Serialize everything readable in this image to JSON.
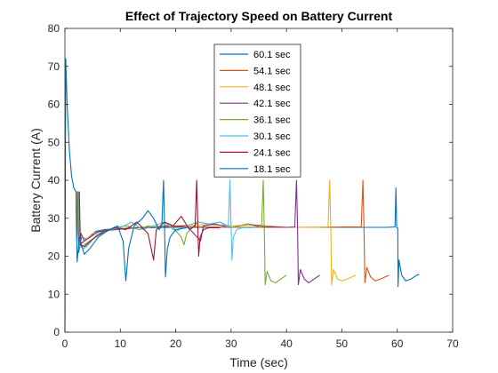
{
  "chart_data": {
    "type": "line",
    "title": "Effect of Trajectory Speed on Battery Current",
    "xlabel": "Time (sec)",
    "ylabel": "Battery Current (A)",
    "xlim": [
      0,
      70
    ],
    "ylim": [
      0,
      80
    ],
    "xticks": [
      0,
      10,
      20,
      30,
      40,
      50,
      60,
      70
    ],
    "yticks": [
      0,
      10,
      20,
      30,
      40,
      50,
      60,
      70,
      80
    ],
    "grid": false,
    "legend_position": "top-center",
    "series": [
      {
        "name": "60.1 sec",
        "color": "#0072BD",
        "points": [
          [
            0,
            0
          ],
          [
            0.15,
            72
          ],
          [
            0.4,
            60
          ],
          [
            0.8,
            48
          ],
          [
            1.2,
            41
          ],
          [
            1.6,
            38
          ],
          [
            2.0,
            37
          ],
          [
            2.1,
            25
          ],
          [
            2.3,
            37
          ],
          [
            2.5,
            21
          ],
          [
            2.9,
            26
          ],
          [
            3.5,
            24
          ],
          [
            4.5,
            25
          ],
          [
            5.5,
            26.5
          ],
          [
            7,
            27
          ],
          [
            9,
            27.2
          ],
          [
            12,
            27.5
          ],
          [
            15,
            27.5
          ],
          [
            20,
            27.6
          ],
          [
            30,
            27.6
          ],
          [
            40,
            27.6
          ],
          [
            50,
            27.6
          ],
          [
            58,
            27.6
          ],
          [
            59.6,
            27.7
          ],
          [
            59.75,
            38
          ],
          [
            59.9,
            27.5
          ],
          [
            60.1,
            27.4
          ],
          [
            60.15,
            12
          ],
          [
            60.3,
            19
          ],
          [
            60.8,
            15
          ],
          [
            61.5,
            13.5
          ],
          [
            62.5,
            14
          ],
          [
            63.5,
            15
          ],
          [
            64,
            15.2
          ]
        ]
      },
      {
        "name": "54.1 sec",
        "color": "#D95319",
        "points": [
          [
            2.0,
            37
          ],
          [
            2.2,
            26
          ],
          [
            2.4,
            34
          ],
          [
            2.6,
            22
          ],
          [
            3,
            25
          ],
          [
            4,
            24.5
          ],
          [
            6,
            26.5
          ],
          [
            9,
            27
          ],
          [
            13,
            27.5
          ],
          [
            20,
            27.8
          ],
          [
            30,
            27.6
          ],
          [
            40,
            27.6
          ],
          [
            50,
            27.7
          ],
          [
            53.5,
            27.7
          ],
          [
            53.8,
            40
          ],
          [
            54.0,
            27.5
          ],
          [
            54.15,
            13
          ],
          [
            54.5,
            17
          ],
          [
            55.2,
            14.5
          ],
          [
            56,
            13.5
          ],
          [
            57,
            14
          ],
          [
            58.5,
            15
          ]
        ]
      },
      {
        "name": "48.1 sec",
        "color": "#EDB120",
        "points": [
          [
            2.2,
            37
          ],
          [
            2.4,
            24
          ],
          [
            2.7,
            23
          ],
          [
            3.5,
            24
          ],
          [
            5,
            26
          ],
          [
            8,
            27
          ],
          [
            12,
            27.5
          ],
          [
            20,
            28
          ],
          [
            25,
            28.3
          ],
          [
            30,
            28
          ],
          [
            35,
            28.2
          ],
          [
            40,
            27.6
          ],
          [
            45,
            27.6
          ],
          [
            47.5,
            27.7
          ],
          [
            47.8,
            40
          ],
          [
            48.0,
            27.5
          ],
          [
            48.15,
            12.5
          ],
          [
            48.5,
            16.5
          ],
          [
            49.2,
            14
          ],
          [
            50,
            13.5
          ],
          [
            51,
            14
          ],
          [
            52.5,
            15
          ]
        ]
      },
      {
        "name": "42.1 sec",
        "color": "#7E2F8E",
        "points": [
          [
            2.3,
            37
          ],
          [
            2.5,
            23
          ],
          [
            3,
            23.5
          ],
          [
            4,
            24.5
          ],
          [
            6,
            26.5
          ],
          [
            9,
            27
          ],
          [
            13,
            27.5
          ],
          [
            18,
            27.8
          ],
          [
            22,
            28
          ],
          [
            24.5,
            24
          ],
          [
            25,
            28
          ],
          [
            27,
            28.5
          ],
          [
            30,
            27.5
          ],
          [
            33,
            28.5
          ],
          [
            36,
            27.8
          ],
          [
            40,
            27.6
          ],
          [
            41.5,
            27.7
          ],
          [
            41.8,
            40
          ],
          [
            42.0,
            27.5
          ],
          [
            42.15,
            12.5
          ],
          [
            42.5,
            16.5
          ],
          [
            43.2,
            14
          ],
          [
            44,
            13
          ],
          [
            45,
            14
          ],
          [
            46,
            15
          ]
        ]
      },
      {
        "name": "36.1 sec",
        "color": "#77AC30",
        "points": [
          [
            2.4,
            37
          ],
          [
            2.6,
            23
          ],
          [
            3,
            22.5
          ],
          [
            4,
            23.5
          ],
          [
            6,
            25.5
          ],
          [
            9,
            27.5
          ],
          [
            11,
            28
          ],
          [
            13.5,
            27
          ],
          [
            15,
            28
          ],
          [
            17,
            27.5
          ],
          [
            19,
            28.5
          ],
          [
            21,
            25
          ],
          [
            21.5,
            23
          ],
          [
            22,
            26
          ],
          [
            24,
            29
          ],
          [
            26,
            28.5
          ],
          [
            28,
            29
          ],
          [
            30,
            27.5
          ],
          [
            33,
            28.5
          ],
          [
            35.5,
            27.5
          ],
          [
            35.8,
            40
          ],
          [
            36.0,
            27.5
          ],
          [
            36.15,
            12.5
          ],
          [
            36.5,
            16
          ],
          [
            37.2,
            13.5
          ],
          [
            38,
            13
          ],
          [
            39,
            14
          ],
          [
            40,
            15
          ]
        ]
      },
      {
        "name": "30.1 sec",
        "color": "#4DBEEE",
        "points": [
          [
            2.5,
            37
          ],
          [
            2.7,
            22.5
          ],
          [
            3.5,
            22
          ],
          [
            4.5,
            23.5
          ],
          [
            6,
            26
          ],
          [
            8,
            27
          ],
          [
            10,
            27.5
          ],
          [
            12,
            29
          ],
          [
            14,
            27
          ],
          [
            16,
            28
          ],
          [
            18,
            29
          ],
          [
            20,
            26.5
          ],
          [
            22,
            28
          ],
          [
            24,
            29
          ],
          [
            26,
            28.5
          ],
          [
            28,
            29
          ],
          [
            29.5,
            27.5
          ],
          [
            29.8,
            40
          ],
          [
            30.0,
            27.5
          ],
          [
            30.15,
            19
          ],
          [
            30.4,
            25
          ],
          [
            31,
            27
          ],
          [
            32,
            27.5
          ],
          [
            34,
            27.5
          ]
        ]
      },
      {
        "name": "24.1 sec",
        "color": "#A2142F",
        "points": [
          [
            2.6,
            37
          ],
          [
            2.8,
            23
          ],
          [
            3.5,
            22.5
          ],
          [
            5,
            24.5
          ],
          [
            7,
            26.5
          ],
          [
            9,
            27.5
          ],
          [
            11,
            27
          ],
          [
            13,
            29
          ],
          [
            15,
            26
          ],
          [
            16,
            19
          ],
          [
            16.5,
            27
          ],
          [
            18,
            29
          ],
          [
            19.5,
            28
          ],
          [
            21,
            30.5
          ],
          [
            22.5,
            27
          ],
          [
            23.5,
            28
          ],
          [
            23.8,
            40
          ],
          [
            24.0,
            27.5
          ],
          [
            24.15,
            20
          ],
          [
            24.4,
            25
          ],
          [
            25,
            27
          ],
          [
            26,
            27.5
          ],
          [
            28,
            27.5
          ]
        ]
      },
      {
        "name": "18.1 sec",
        "color": "#0072BD",
        "points": [
          [
            2.0,
            37
          ],
          [
            2.2,
            18.5
          ],
          [
            2.6,
            25
          ],
          [
            3.5,
            20.5
          ],
          [
            4.5,
            22
          ],
          [
            6,
            25
          ],
          [
            8,
            27
          ],
          [
            9.5,
            28
          ],
          [
            10.5,
            24
          ],
          [
            11,
            13.5
          ],
          [
            11.5,
            22
          ],
          [
            12.5,
            28
          ],
          [
            14,
            30
          ],
          [
            15,
            32
          ],
          [
            16,
            30
          ],
          [
            17,
            27
          ],
          [
            17.5,
            28
          ],
          [
            17.8,
            40
          ],
          [
            18.0,
            27.5
          ],
          [
            18.15,
            14.5
          ],
          [
            18.5,
            22
          ],
          [
            19,
            25
          ],
          [
            20,
            27
          ],
          [
            22,
            27.5
          ]
        ]
      }
    ]
  }
}
